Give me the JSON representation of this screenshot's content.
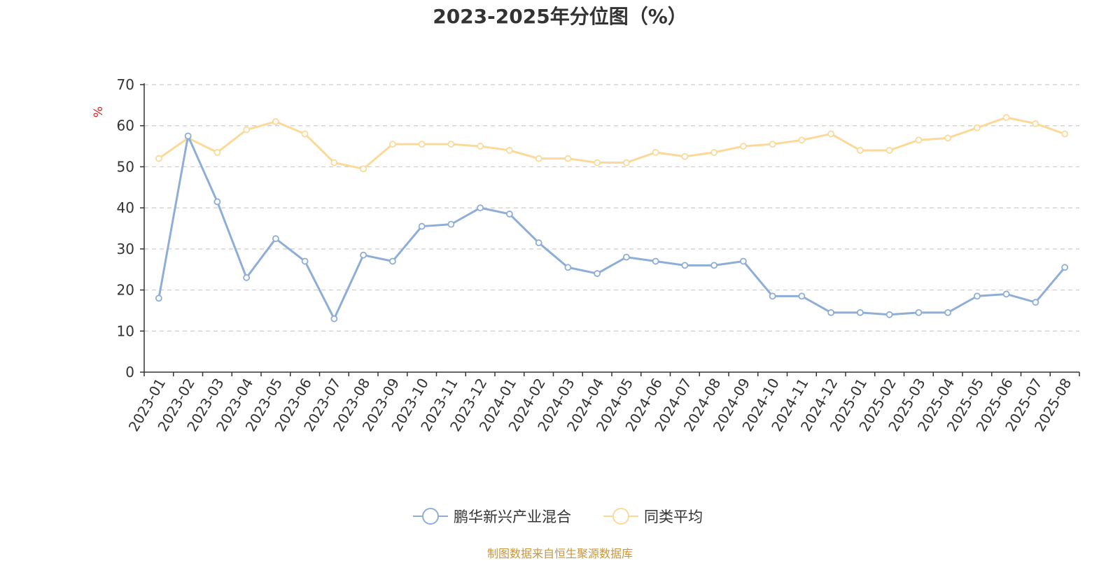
{
  "title": "2023-2025年分位图（%）",
  "source": "制图数据来自恒生聚源数据库",
  "chart_data": {
    "type": "line",
    "title": "2023-2025年分位图（%）",
    "ylabel": "%",
    "ylim": [
      0,
      70
    ],
    "yticks": [
      0,
      10,
      20,
      30,
      40,
      50,
      60,
      70
    ],
    "grid": true,
    "legend_position": "bottom-center",
    "categories": [
      "2023-01",
      "2023-02",
      "2023-03",
      "2023-04",
      "2023-05",
      "2023-06",
      "2023-07",
      "2023-08",
      "2023-09",
      "2023-10",
      "2023-11",
      "2023-12",
      "2024-01",
      "2024-02",
      "2024-03",
      "2024-04",
      "2024-05",
      "2024-06",
      "2024-07",
      "2024-08",
      "2024-09",
      "2024-10",
      "2024-11",
      "2024-12",
      "2025-01",
      "2025-02",
      "2025-03",
      "2025-04",
      "2025-05",
      "2025-06",
      "2025-07",
      "2025-08"
    ],
    "series": [
      {
        "name": "鹏华新兴产业混合",
        "color": "#8eaed8",
        "values": [
          18,
          57.5,
          41.5,
          23,
          32.5,
          27,
          13,
          28.5,
          27,
          35.5,
          36,
          40,
          38.5,
          31.5,
          25.5,
          24,
          28,
          27,
          26,
          26,
          27,
          18.5,
          18.5,
          14.5,
          14.5,
          14,
          14.5,
          14.5,
          18.5,
          19,
          17,
          25.5
        ]
      },
      {
        "name": "同类平均",
        "color": "#fbd999",
        "values": [
          52,
          57,
          53.5,
          59,
          61,
          58,
          51,
          49.5,
          55.5,
          55.5,
          55.5,
          55,
          54,
          52,
          52,
          51,
          51,
          53.5,
          52.5,
          53.5,
          55,
          55.5,
          56.5,
          58,
          54,
          54,
          56.5,
          57,
          59.5,
          62,
          60.5,
          58
        ]
      }
    ]
  }
}
